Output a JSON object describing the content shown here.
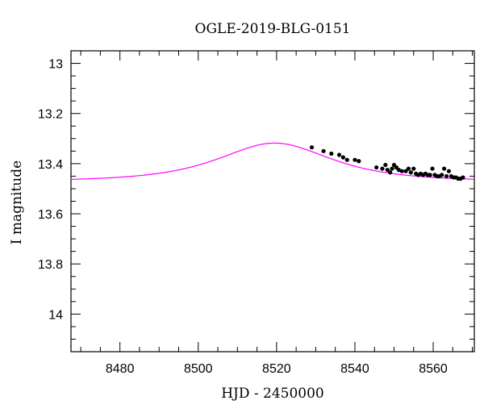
{
  "chart_data": {
    "type": "scatter",
    "title": "OGLE-2019-BLG-0151",
    "xlabel": "HJD - 2450000",
    "ylabel": "I magnitude",
    "xlim": [
      8467.5,
      8570.5
    ],
    "ylim": [
      14.15,
      12.95
    ],
    "y_inverted": true,
    "x_ticks": [
      8480,
      8500,
      8520,
      8540,
      8560
    ],
    "y_ticks": [
      13,
      13.2,
      13.4,
      13.6,
      13.8,
      14
    ],
    "x_tick_labels": [
      "8480",
      "8500",
      "8520",
      "8540",
      "8560"
    ],
    "y_tick_labels": [
      "13",
      "13.2",
      "13.4",
      "13.6",
      "13.8",
      "14"
    ],
    "grid": false,
    "series": [
      {
        "kind": "points",
        "color": "#000000",
        "x": [
          8529.0,
          8532.0,
          8534.0,
          8536.0,
          8537.0,
          8538.0,
          8540.0,
          8541.0,
          8545.5,
          8547.0,
          8547.8,
          8548.3,
          8549.0,
          8549.5,
          8550.0,
          8550.6,
          8551.2,
          8552.0,
          8553.0,
          8553.7,
          8554.3,
          8555.0,
          8555.6,
          8556.2,
          8556.8,
          8557.4,
          8558.0,
          8558.6,
          8559.2,
          8559.8,
          8560.4,
          8561.0,
          8561.6,
          8562.2,
          8562.8,
          8563.4,
          8564.0,
          8564.6,
          8565.2,
          8565.8,
          8566.4,
          8567.0,
          8567.6
        ],
        "y": [
          13.335,
          13.35,
          13.36,
          13.365,
          13.375,
          13.385,
          13.385,
          13.39,
          13.415,
          13.42,
          13.405,
          13.425,
          13.435,
          13.42,
          13.405,
          13.415,
          13.425,
          13.43,
          13.43,
          13.42,
          13.435,
          13.42,
          13.44,
          13.445,
          13.44,
          13.445,
          13.44,
          13.445,
          13.445,
          13.42,
          13.445,
          13.45,
          13.45,
          13.445,
          13.42,
          13.45,
          13.43,
          13.45,
          13.455,
          13.455,
          13.46,
          13.46,
          13.455
        ]
      },
      {
        "kind": "model",
        "color": "#ff00ff",
        "baseline": 13.47,
        "peak_mag": 13.318,
        "peak_time": 8519.5,
        "u0": 0.93,
        "tE": 18.0
      }
    ]
  }
}
